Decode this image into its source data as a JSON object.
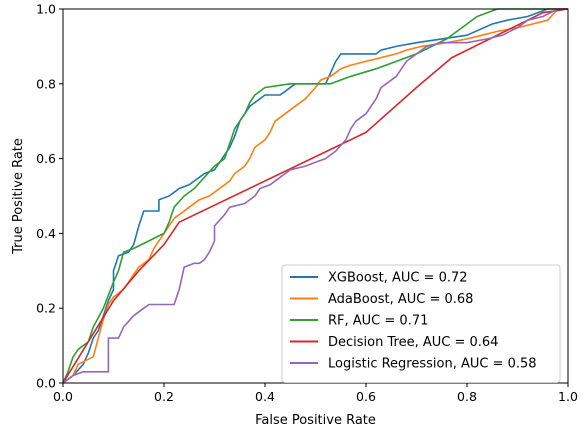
{
  "chart_data": {
    "type": "line",
    "xlabel": "False Positive Rate",
    "ylabel": "True Positive Rate",
    "xlim": [
      0,
      1
    ],
    "ylim": [
      0,
      1
    ],
    "xticks": [
      "0.0",
      "0.2",
      "0.4",
      "0.6",
      "0.8",
      "1.0"
    ],
    "yticks": [
      "0.0",
      "0.2",
      "0.4",
      "0.6",
      "0.8",
      "1.0"
    ],
    "grid": false,
    "legend_position": "bottom-right",
    "series": [
      {
        "name": "XGBoost, AUC = 0.72",
        "color": "#1f77b4",
        "points": [
          [
            0,
            0
          ],
          [
            0.02,
            0.02
          ],
          [
            0.04,
            0.05
          ],
          [
            0.05,
            0.08
          ],
          [
            0.06,
            0.12
          ],
          [
            0.07,
            0.14
          ],
          [
            0.08,
            0.18
          ],
          [
            0.09,
            0.22
          ],
          [
            0.1,
            0.25
          ],
          [
            0.1,
            0.3
          ],
          [
            0.11,
            0.34
          ],
          [
            0.13,
            0.35
          ],
          [
            0.14,
            0.37
          ],
          [
            0.15,
            0.42
          ],
          [
            0.16,
            0.46
          ],
          [
            0.19,
            0.46
          ],
          [
            0.19,
            0.49
          ],
          [
            0.21,
            0.5
          ],
          [
            0.22,
            0.51
          ],
          [
            0.23,
            0.52
          ],
          [
            0.25,
            0.53
          ],
          [
            0.26,
            0.54
          ],
          [
            0.27,
            0.55
          ],
          [
            0.28,
            0.56
          ],
          [
            0.3,
            0.57
          ],
          [
            0.31,
            0.59
          ],
          [
            0.32,
            0.61
          ],
          [
            0.33,
            0.63
          ],
          [
            0.34,
            0.66
          ],
          [
            0.35,
            0.7
          ],
          [
            0.36,
            0.72
          ],
          [
            0.37,
            0.74
          ],
          [
            0.38,
            0.75
          ],
          [
            0.39,
            0.76
          ],
          [
            0.4,
            0.77
          ],
          [
            0.43,
            0.77
          ],
          [
            0.44,
            0.78
          ],
          [
            0.46,
            0.8
          ],
          [
            0.52,
            0.8
          ],
          [
            0.53,
            0.83
          ],
          [
            0.54,
            0.86
          ],
          [
            0.55,
            0.88
          ],
          [
            0.62,
            0.88
          ],
          [
            0.63,
            0.89
          ],
          [
            0.66,
            0.9
          ],
          [
            0.7,
            0.91
          ],
          [
            0.8,
            0.93
          ],
          [
            0.85,
            0.96
          ],
          [
            0.88,
            0.97
          ],
          [
            0.92,
            0.98
          ],
          [
            0.96,
            1.0
          ],
          [
            1.0,
            1.0
          ]
        ]
      },
      {
        "name": "AdaBoost, AUC = 0.68",
        "color": "#ff7f0e",
        "points": [
          [
            0,
            0
          ],
          [
            0.02,
            0.02
          ],
          [
            0.03,
            0.05
          ],
          [
            0.06,
            0.07
          ],
          [
            0.07,
            0.12
          ],
          [
            0.08,
            0.17
          ],
          [
            0.09,
            0.21
          ],
          [
            0.1,
            0.23
          ],
          [
            0.12,
            0.25
          ],
          [
            0.13,
            0.27
          ],
          [
            0.14,
            0.29
          ],
          [
            0.15,
            0.31
          ],
          [
            0.17,
            0.33
          ],
          [
            0.18,
            0.36
          ],
          [
            0.2,
            0.4
          ],
          [
            0.22,
            0.44
          ],
          [
            0.23,
            0.45
          ],
          [
            0.25,
            0.47
          ],
          [
            0.27,
            0.49
          ],
          [
            0.29,
            0.5
          ],
          [
            0.31,
            0.52
          ],
          [
            0.33,
            0.54
          ],
          [
            0.34,
            0.56
          ],
          [
            0.36,
            0.58
          ],
          [
            0.37,
            0.6
          ],
          [
            0.38,
            0.63
          ],
          [
            0.4,
            0.65
          ],
          [
            0.41,
            0.67
          ],
          [
            0.42,
            0.7
          ],
          [
            0.44,
            0.72
          ],
          [
            0.46,
            0.74
          ],
          [
            0.48,
            0.76
          ],
          [
            0.5,
            0.79
          ],
          [
            0.51,
            0.81
          ],
          [
            0.53,
            0.82
          ],
          [
            0.55,
            0.84
          ],
          [
            0.57,
            0.85
          ],
          [
            0.6,
            0.86
          ],
          [
            0.63,
            0.87
          ],
          [
            0.66,
            0.88
          ],
          [
            0.68,
            0.89
          ],
          [
            0.71,
            0.9
          ],
          [
            0.76,
            0.91
          ],
          [
            0.8,
            0.92
          ],
          [
            0.83,
            0.93
          ],
          [
            0.86,
            0.94
          ],
          [
            0.9,
            0.95
          ],
          [
            0.93,
            0.96
          ],
          [
            0.96,
            0.97
          ],
          [
            0.98,
            1.0
          ],
          [
            1.0,
            1.0
          ]
        ]
      },
      {
        "name": "RF, AUC = 0.71",
        "color": "#2ca02c",
        "points": [
          [
            0,
            0
          ],
          [
            0.01,
            0.03
          ],
          [
            0.02,
            0.07
          ],
          [
            0.03,
            0.09
          ],
          [
            0.05,
            0.11
          ],
          [
            0.06,
            0.15
          ],
          [
            0.08,
            0.2
          ],
          [
            0.1,
            0.27
          ],
          [
            0.11,
            0.3
          ],
          [
            0.12,
            0.35
          ],
          [
            0.14,
            0.36
          ],
          [
            0.17,
            0.38
          ],
          [
            0.2,
            0.4
          ],
          [
            0.21,
            0.43
          ],
          [
            0.22,
            0.47
          ],
          [
            0.24,
            0.5
          ],
          [
            0.26,
            0.52
          ],
          [
            0.28,
            0.55
          ],
          [
            0.3,
            0.58
          ],
          [
            0.32,
            0.6
          ],
          [
            0.33,
            0.64
          ],
          [
            0.34,
            0.68
          ],
          [
            0.36,
            0.72
          ],
          [
            0.37,
            0.75
          ],
          [
            0.38,
            0.77
          ],
          [
            0.4,
            0.79
          ],
          [
            0.45,
            0.8
          ],
          [
            0.53,
            0.8
          ],
          [
            0.57,
            0.82
          ],
          [
            0.62,
            0.84
          ],
          [
            0.66,
            0.86
          ],
          [
            0.7,
            0.88
          ],
          [
            0.73,
            0.9
          ],
          [
            0.76,
            0.92
          ],
          [
            0.78,
            0.94
          ],
          [
            0.8,
            0.96
          ],
          [
            0.82,
            0.98
          ],
          [
            0.84,
            0.99
          ],
          [
            0.86,
            1.0
          ],
          [
            1.0,
            1.0
          ]
        ]
      },
      {
        "name": "Decision Tree, AUC = 0.64",
        "color": "#d62728",
        "points": [
          [
            0,
            0
          ],
          [
            0.1,
            0.22
          ],
          [
            0.15,
            0.3
          ],
          [
            0.2,
            0.37
          ],
          [
            0.23,
            0.43
          ],
          [
            0.6,
            0.67
          ],
          [
            0.7,
            0.79
          ],
          [
            0.77,
            0.87
          ],
          [
            0.95,
            0.99
          ],
          [
            1.0,
            1.0
          ]
        ]
      },
      {
        "name": "Logistic Regression, AUC = 0.58",
        "color": "#9467bd",
        "points": [
          [
            0,
            0
          ],
          [
            0.02,
            0.02
          ],
          [
            0.04,
            0.03
          ],
          [
            0.09,
            0.03
          ],
          [
            0.09,
            0.12
          ],
          [
            0.11,
            0.12
          ],
          [
            0.12,
            0.15
          ],
          [
            0.14,
            0.18
          ],
          [
            0.16,
            0.2
          ],
          [
            0.17,
            0.21
          ],
          [
            0.22,
            0.21
          ],
          [
            0.23,
            0.25
          ],
          [
            0.24,
            0.31
          ],
          [
            0.26,
            0.32
          ],
          [
            0.27,
            0.32
          ],
          [
            0.28,
            0.33
          ],
          [
            0.29,
            0.35
          ],
          [
            0.3,
            0.38
          ],
          [
            0.3,
            0.42
          ],
          [
            0.32,
            0.45
          ],
          [
            0.33,
            0.47
          ],
          [
            0.36,
            0.48
          ],
          [
            0.38,
            0.5
          ],
          [
            0.39,
            0.52
          ],
          [
            0.41,
            0.53
          ],
          [
            0.43,
            0.55
          ],
          [
            0.45,
            0.57
          ],
          [
            0.48,
            0.58
          ],
          [
            0.5,
            0.59
          ],
          [
            0.52,
            0.6
          ],
          [
            0.54,
            0.62
          ],
          [
            0.56,
            0.65
          ],
          [
            0.57,
            0.68
          ],
          [
            0.58,
            0.7
          ],
          [
            0.6,
            0.72
          ],
          [
            0.62,
            0.76
          ],
          [
            0.63,
            0.79
          ],
          [
            0.64,
            0.8
          ],
          [
            0.66,
            0.82
          ],
          [
            0.67,
            0.84
          ],
          [
            0.68,
            0.86
          ],
          [
            0.7,
            0.88
          ],
          [
            0.72,
            0.9
          ],
          [
            0.75,
            0.91
          ],
          [
            0.8,
            0.91
          ],
          [
            0.84,
            0.92
          ],
          [
            0.87,
            0.93
          ],
          [
            0.9,
            0.95
          ],
          [
            0.92,
            0.97
          ],
          [
            0.95,
            0.98
          ],
          [
            0.98,
            1.0
          ],
          [
            1.0,
            1.0
          ]
        ]
      }
    ]
  }
}
